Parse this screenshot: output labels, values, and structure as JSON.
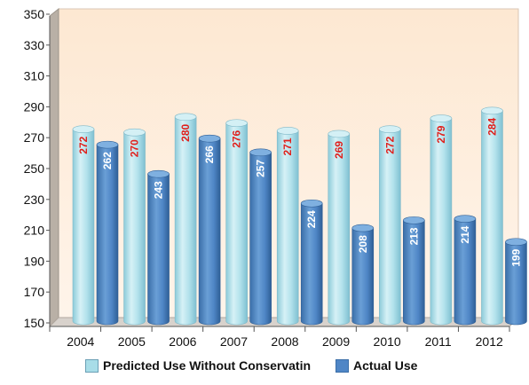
{
  "chart_data": {
    "type": "bar",
    "categories": [
      "2004",
      "2005",
      "2006",
      "2007",
      "2008",
      "2009",
      "2010",
      "2011",
      "2012"
    ],
    "series": [
      {
        "name": "Predicted Use Without Conservatin",
        "values": [
          272,
          270,
          280,
          276,
          271,
          269,
          272,
          279,
          284
        ],
        "color": "#a8dde8",
        "label_color": "#e0201c"
      },
      {
        "name": "Actual Use",
        "values": [
          262,
          243,
          266,
          257,
          224,
          208,
          213,
          214,
          199
        ],
        "color": "#4f86c6",
        "label_color": "#ffffff"
      }
    ],
    "yticks": [
      "150",
      "170",
      "190",
      "210",
      "230",
      "250",
      "270",
      "290",
      "310",
      "330",
      "350"
    ],
    "ylim": [
      150,
      350
    ],
    "grid": false,
    "legend_position": "bottom",
    "plot_background": "#fdeedd",
    "title": "",
    "xlabel": "",
    "ylabel": ""
  }
}
